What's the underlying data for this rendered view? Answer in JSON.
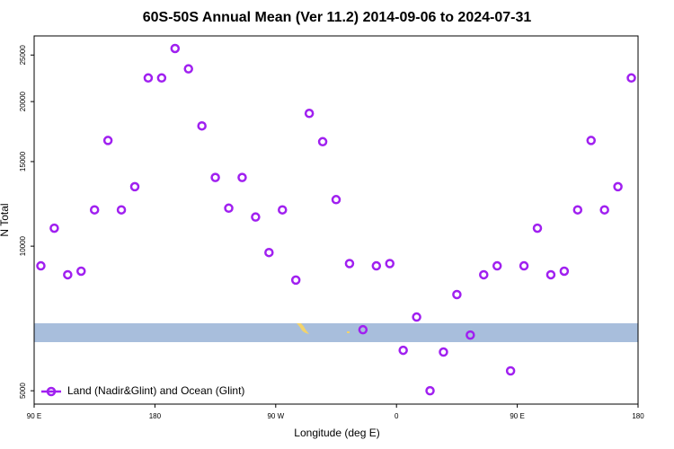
{
  "chart_data": {
    "type": "scatter",
    "title": "60S-50S Annual Mean (Ver 11.2)   2014-09-06 to 2024-07-31",
    "x_label": "Longitude (deg E)",
    "y_label": "N Total",
    "ylog": true,
    "xlim": [
      90,
      540
    ],
    "ylim": [
      4690,
      27400
    ],
    "xticks": [
      {
        "value": 90,
        "label": "90 E"
      },
      180,
      {
        "value": 270,
        "label": "90 W"
      },
      {
        "value": 360,
        "label": "0"
      },
      {
        "value": 450,
        "label": "90 E"
      },
      {
        "value": 540,
        "label": "180"
      }
    ],
    "yticks": [
      5000,
      10000,
      15000,
      20000,
      25000
    ],
    "legend_position": "lower left",
    "series": [
      {
        "name": "Land (Nadir&Glint) and Ocean (Glint)",
        "color": "#a020f0",
        "x": [
          95,
          105,
          115,
          125,
          135,
          145,
          155,
          165,
          175,
          185,
          195,
          205,
          215,
          225,
          235,
          245,
          255,
          265,
          275,
          285,
          295,
          305,
          315,
          325,
          335,
          345,
          355,
          365,
          375,
          385,
          395,
          405,
          415,
          425,
          435,
          445,
          455,
          465,
          475,
          485,
          495,
          505,
          515,
          525,
          535
        ],
        "values": [
          9100,
          10900,
          8720,
          8870,
          11900,
          16600,
          11900,
          13300,
          22400,
          22400,
          25800,
          23400,
          17800,
          13900,
          12000,
          13900,
          11500,
          9700,
          11900,
          8500,
          18900,
          16500,
          12500,
          9200,
          6700,
          9100,
          9200,
          6070,
          7120,
          5000,
          6020,
          7930,
          6530,
          8720,
          9100,
          5500,
          9100,
          10900,
          8720,
          8870,
          11900,
          16600,
          11900,
          13300,
          22400
        ]
      }
    ]
  }
}
